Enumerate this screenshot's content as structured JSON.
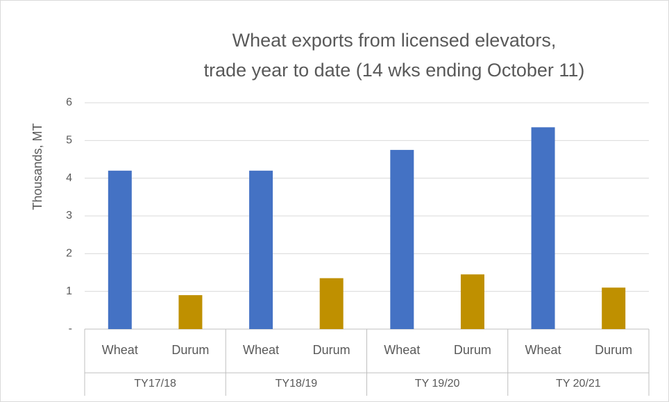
{
  "chart_data": {
    "type": "grouped-bar",
    "title": [
      "Wheat exports from licensed elevators,",
      "trade year to date (14 wks ending October 11)"
    ],
    "ylabel": "Thousands, MT",
    "groups": [
      {
        "label": "TY17/18",
        "categories": [
          "Wheat",
          "Durum"
        ],
        "values": [
          4.2,
          0.9
        ]
      },
      {
        "label": "TY18/19",
        "categories": [
          "Wheat",
          "Durum"
        ],
        "values": [
          4.2,
          1.35
        ]
      },
      {
        "label": "TY 19/20",
        "categories": [
          "Wheat",
          "Durum"
        ],
        "values": [
          4.75,
          1.45
        ]
      },
      {
        "label": "TY 20/21",
        "categories": [
          "Wheat",
          "Durum"
        ],
        "values": [
          5.35,
          1.1
        ]
      }
    ],
    "colors": [
      "#4472c4",
      "#bf9000"
    ],
    "ylim": [
      0,
      6
    ],
    "yticks": [
      {
        "value": 0,
        "label": "-"
      },
      1,
      2,
      3,
      4,
      5,
      6
    ],
    "grid": true
  }
}
